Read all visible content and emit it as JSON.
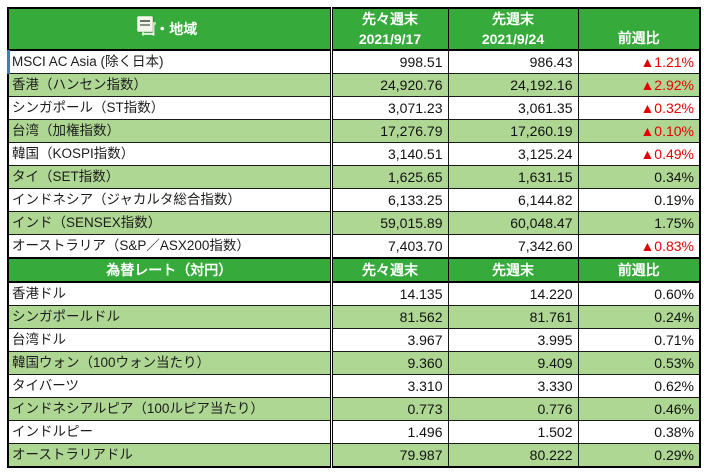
{
  "colors": {
    "header_green": "#37aa3c",
    "row_alt_green": "#afd794",
    "negative_red": "#e60000",
    "selection_blue": "#3c7ec0",
    "border_black": "#000000"
  },
  "icons": {
    "header_artifact": "clipboard-paste-icon",
    "active_cell": "active-cell-indicator"
  },
  "indices": {
    "title": "国・地域",
    "col_prev2_line1": "先々週末",
    "col_prev2_line2": "2021/9/17",
    "col_prev1_line1": "先週末",
    "col_prev1_line2": "2021/9/24",
    "col_change": "前週比",
    "rows": [
      {
        "name": "MSCI AC Asia (除く日本)",
        "prev2": "998.51",
        "prev1": "986.43",
        "change": "▲1.21%",
        "trend": "neg"
      },
      {
        "name": "香港（ハンセン指数）",
        "prev2": "24,920.76",
        "prev1": "24,192.16",
        "change": "▲2.92%",
        "trend": "neg"
      },
      {
        "name": "シンガポール（ST指数）",
        "prev2": "3,071.23",
        "prev1": "3,061.35",
        "change": "▲0.32%",
        "trend": "neg"
      },
      {
        "name": "台湾（加権指数）",
        "prev2": "17,276.79",
        "prev1": "17,260.19",
        "change": "▲0.10%",
        "trend": "neg"
      },
      {
        "name": "韓国（KOSPI指数）",
        "prev2": "3,140.51",
        "prev1": "3,125.24",
        "change": "▲0.49%",
        "trend": "neg"
      },
      {
        "name": "タイ（SET指数）",
        "prev2": "1,625.65",
        "prev1": "1,631.15",
        "change": "0.34%",
        "trend": "pos"
      },
      {
        "name": "インドネシア（ジャカルタ総合指数）",
        "prev2": "6,133.25",
        "prev1": "6,144.82",
        "change": "0.19%",
        "trend": "pos"
      },
      {
        "name": "インド（SENSEX指数）",
        "prev2": "59,015.89",
        "prev1": "60,048.47",
        "change": "1.75%",
        "trend": "pos"
      },
      {
        "name": "オーストラリア（S&P／ASX200指数）",
        "prev2": "7,403.70",
        "prev1": "7,342.60",
        "change": "▲0.83%",
        "trend": "neg"
      }
    ]
  },
  "fx": {
    "title": "為替レート（対円）",
    "col_prev2": "先々週末",
    "col_prev1": "先週末",
    "col_change": "前週比",
    "rows": [
      {
        "name": "香港ドル",
        "prev2": "14.135",
        "prev1": "14.220",
        "change": "0.60%",
        "trend": "pos"
      },
      {
        "name": "シンガポールドル",
        "prev2": "81.562",
        "prev1": "81.761",
        "change": "0.24%",
        "trend": "pos"
      },
      {
        "name": "台湾ドル",
        "prev2": "3.967",
        "prev1": "3.995",
        "change": "0.71%",
        "trend": "pos"
      },
      {
        "name": "韓国ウォン（100ウォン当たり）",
        "prev2": "9.360",
        "prev1": "9.409",
        "change": "0.53%",
        "trend": "pos"
      },
      {
        "name": "タイバーツ",
        "prev2": "3.310",
        "prev1": "3.330",
        "change": "0.62%",
        "trend": "pos"
      },
      {
        "name": "インドネシアルピア（100ルピア当たり）",
        "prev2": "0.773",
        "prev1": "0.776",
        "change": "0.46%",
        "trend": "pos"
      },
      {
        "name": "インドルピー",
        "prev2": "1.496",
        "prev1": "1.502",
        "change": "0.38%",
        "trend": "pos"
      },
      {
        "name": "オーストラリアドル",
        "prev2": "79.987",
        "prev1": "80.222",
        "change": "0.29%",
        "trend": "pos"
      }
    ]
  }
}
